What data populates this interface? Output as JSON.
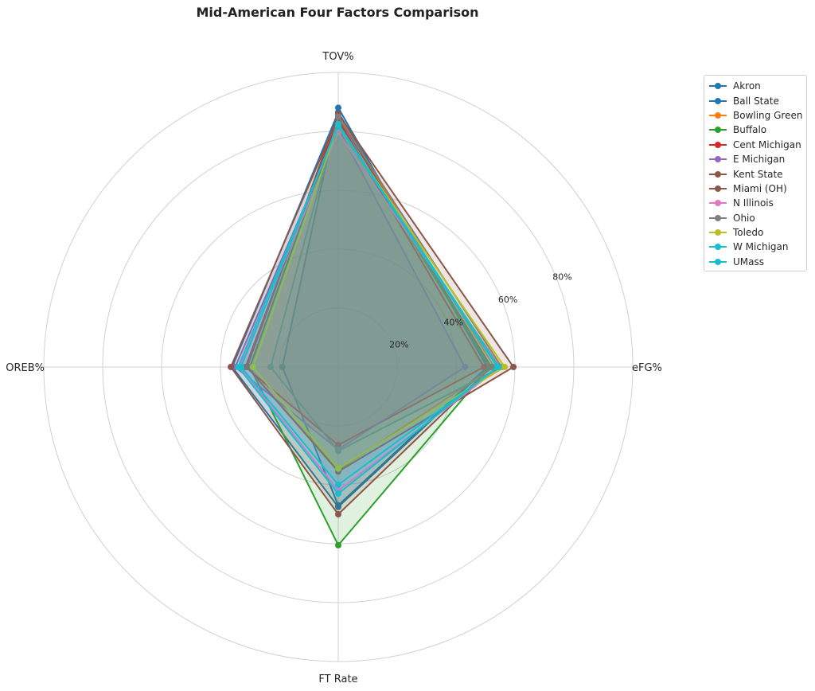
{
  "chart_data": {
    "type": "radar",
    "title": "Mid-American Four Factors Comparison",
    "axes": [
      "eFG%",
      "TOV%",
      "OREB%",
      "FT Rate"
    ],
    "rlim": [
      0,
      100
    ],
    "tick_labels": [
      {
        "value": 20,
        "label": "20%"
      },
      {
        "value": 40,
        "label": "40%"
      },
      {
        "value": 60,
        "label": "60%"
      },
      {
        "value": 80,
        "label": "80%"
      }
    ],
    "grid": true,
    "legend_position": "right",
    "series": [
      {
        "name": "Akron",
        "color": "#1f77b4",
        "values": [
          50.5,
          88.0,
          19.0,
          47.0
        ]
      },
      {
        "name": "Ball State",
        "color": "#1f77b4",
        "values": [
          51.0,
          86.5,
          36.0,
          47.5
        ]
      },
      {
        "name": "Bowling Green",
        "color": "#ff7f0e",
        "values": [
          53.0,
          85.5,
          31.0,
          35.0
        ]
      },
      {
        "name": "Buffalo",
        "color": "#2ca02c",
        "values": [
          51.5,
          83.5,
          30.0,
          60.5
        ]
      },
      {
        "name": "Cent Michigan",
        "color": "#d62728",
        "values": [
          49.5,
          84.0,
          31.5,
          26.5
        ]
      },
      {
        "name": "E Michigan",
        "color": "#9467bd",
        "values": [
          43.0,
          81.0,
          35.0,
          28.0
        ]
      },
      {
        "name": "Kent State",
        "color": "#8c564b",
        "values": [
          59.5,
          86.0,
          31.0,
          35.5
        ]
      },
      {
        "name": "Miami (OH)",
        "color": "#8c564b",
        "values": [
          52.0,
          85.0,
          36.5,
          50.0
        ]
      },
      {
        "name": "N Illinois",
        "color": "#e377c2",
        "values": [
          55.0,
          79.5,
          33.5,
          42.0
        ]
      },
      {
        "name": "Ohio",
        "color": "#7f7f7f",
        "values": [
          55.5,
          85.0,
          23.0,
          28.5
        ]
      },
      {
        "name": "Toledo",
        "color": "#bcbd22",
        "values": [
          56.5,
          82.0,
          29.0,
          34.5
        ]
      },
      {
        "name": "W Michigan",
        "color": "#17becf",
        "values": [
          54.0,
          82.0,
          34.0,
          43.0
        ]
      },
      {
        "name": "UMass",
        "color": "#17becf",
        "values": [
          54.5,
          82.5,
          33.0,
          40.0
        ]
      }
    ]
  }
}
